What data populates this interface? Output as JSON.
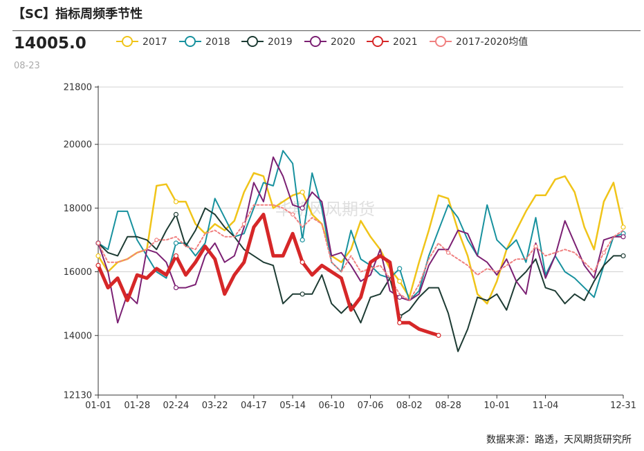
{
  "header": {
    "title": "【SC】指标周频季节性",
    "value": "14005.0",
    "date": "08-23"
  },
  "footer": {
    "source": "数据来源：路透，天风期货研究所"
  },
  "watermark": "华期风风期货",
  "chart_data": {
    "type": "line",
    "title": "",
    "xlabel": "",
    "ylabel": "",
    "ylim": [
      12130,
      21800
    ],
    "yticks": [
      12130,
      14000,
      16000,
      18000,
      20000,
      21800
    ],
    "x_ticks": [
      "01-01",
      "01-28",
      "02-24",
      "03-22",
      "04-17",
      "05-14",
      "06-10",
      "07-06",
      "08-02",
      "08-28",
      "10-01",
      "11-04",
      "12-31"
    ],
    "x_tick_index": [
      0,
      4,
      8,
      12,
      16,
      20,
      24,
      28,
      32,
      36,
      41,
      46,
      54
    ],
    "n_weeks": 55,
    "legend_position": "top",
    "grid": "horizontal",
    "series": [
      {
        "name": "2017",
        "color": "#f0c419",
        "width": 2.5,
        "dashed": false,
        "values": [
          16500,
          16000,
          16300,
          16400,
          16600,
          16700,
          18700,
          18750,
          18200,
          18200,
          17500,
          17200,
          17500,
          17300,
          17600,
          18500,
          19100,
          19000,
          18000,
          18200,
          18400,
          18500,
          17800,
          17500,
          16500,
          16300,
          16700,
          17600,
          17100,
          16700,
          16100,
          15700,
          15200,
          16300,
          17300,
          18400,
          18300,
          17300,
          16500,
          15300,
          15000,
          15700,
          16700,
          17300,
          17900,
          18400,
          18400,
          18900,
          19000,
          18500,
          17400,
          16700,
          18200,
          18800,
          17400
        ]
      },
      {
        "name": "2018",
        "color": "#17919e",
        "width": 2,
        "dashed": false,
        "values": [
          16900,
          16700,
          17900,
          17900,
          17000,
          16500,
          16000,
          15800,
          16900,
          16900,
          16500,
          16900,
          18300,
          17700,
          17100,
          17200,
          18000,
          18800,
          18700,
          19800,
          19400,
          17000,
          19100,
          18000,
          16300,
          16000,
          17300,
          16400,
          16200,
          15900,
          15800,
          16100,
          15100,
          15400,
          16500,
          17300,
          18100,
          17700,
          17000,
          16500,
          18100,
          17000,
          16700,
          17000,
          16300,
          17700,
          15900,
          16500,
          16000,
          15800,
          15500,
          15200,
          16200,
          17100,
          17200
        ]
      },
      {
        "name": "2019",
        "color": "#1d3b33",
        "width": 2,
        "dashed": false,
        "values": [
          16900,
          16600,
          16500,
          17100,
          17100,
          17000,
          16700,
          17300,
          17800,
          16800,
          17300,
          18000,
          17800,
          17400,
          17100,
          16700,
          16500,
          16300,
          16200,
          15000,
          15300,
          15300,
          15300,
          15900,
          15000,
          14700,
          15000,
          14400,
          15200,
          15300,
          15800,
          14600,
          14800,
          15200,
          15500,
          15500,
          14700,
          13500,
          14200,
          15200,
          15100,
          15300,
          14800,
          15700,
          16000,
          16400,
          15500,
          15400,
          15000,
          15300,
          15100,
          15700,
          16200,
          16500,
          16500
        ]
      },
      {
        "name": "2020",
        "color": "#7b2073",
        "width": 2,
        "dashed": false,
        "values": [
          16900,
          16000,
          14400,
          15300,
          15000,
          16700,
          16600,
          16300,
          15500,
          15500,
          15600,
          16500,
          16900,
          16300,
          16500,
          17400,
          18800,
          18200,
          19600,
          19000,
          18100,
          18000,
          18500,
          18200,
          16500,
          16600,
          16200,
          15700,
          15900,
          16700,
          15400,
          15200,
          15100,
          15300,
          16200,
          16700,
          16700,
          17300,
          17200,
          16500,
          16300,
          15900,
          16400,
          15700,
          15300,
          16900,
          15800,
          16500,
          17600,
          16900,
          16200,
          15800,
          17000,
          17100,
          17100
        ]
      },
      {
        "name": "2021",
        "color": "#d62728",
        "width": 5,
        "dashed": false,
        "values": [
          16200,
          15500,
          15800,
          15100,
          15900,
          15800,
          16100,
          15900,
          16500,
          15900,
          16300,
          16800,
          16400,
          15300,
          15900,
          16300,
          17400,
          17800,
          16500,
          16500,
          17200,
          16300,
          15900,
          16200,
          16000,
          15800,
          14800,
          15200,
          16300,
          16500,
          16300,
          14400,
          14400,
          14200,
          14100,
          14005
        ]
      },
      {
        "name": "2017-2020均值",
        "color": "#f08080",
        "width": 2,
        "dashed": true,
        "values": [
          16900,
          16300,
          16300,
          16400,
          16600,
          16700,
          17000,
          17000,
          17100,
          16800,
          16700,
          17200,
          17300,
          17100,
          17100,
          17500,
          18100,
          18100,
          18100,
          18000,
          17800,
          17400,
          17700,
          17500,
          16300,
          16000,
          16500,
          16000,
          16100,
          16200,
          15800,
          15300,
          15100,
          15600,
          16400,
          16900,
          16600,
          16400,
          16200,
          15900,
          16100,
          16000,
          16200,
          16400,
          16400,
          16800,
          16500,
          16600,
          16700,
          16600,
          16300,
          16000,
          16600,
          17100,
          17300
        ]
      }
    ]
  }
}
